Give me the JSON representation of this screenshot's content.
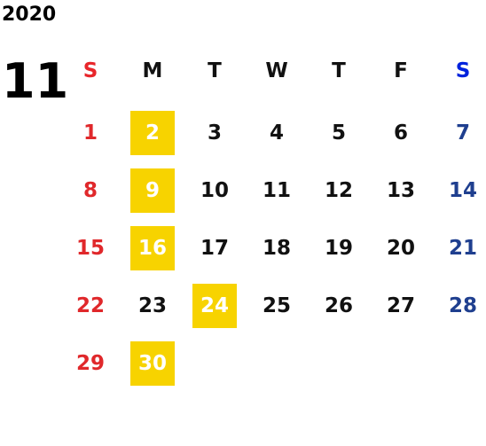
{
  "year": "2020",
  "month": "11",
  "weekdays": [
    "S",
    "M",
    "T",
    "W",
    "T",
    "F",
    "S"
  ],
  "weeks": [
    [
      {
        "day": "1"
      },
      {
        "day": "2",
        "highlight": true
      },
      {
        "day": "3"
      },
      {
        "day": "4"
      },
      {
        "day": "5"
      },
      {
        "day": "6"
      },
      {
        "day": "7"
      }
    ],
    [
      {
        "day": "8"
      },
      {
        "day": "9",
        "highlight": true
      },
      {
        "day": "10"
      },
      {
        "day": "11"
      },
      {
        "day": "12"
      },
      {
        "day": "13"
      },
      {
        "day": "14"
      }
    ],
    [
      {
        "day": "15"
      },
      {
        "day": "16",
        "highlight": true
      },
      {
        "day": "17"
      },
      {
        "day": "18"
      },
      {
        "day": "19"
      },
      {
        "day": "20"
      },
      {
        "day": "21"
      }
    ],
    [
      {
        "day": "22"
      },
      {
        "day": "23"
      },
      {
        "day": "24",
        "highlight": true
      },
      {
        "day": "25"
      },
      {
        "day": "26"
      },
      {
        "day": "27"
      },
      {
        "day": "28"
      }
    ],
    [
      {
        "day": "29"
      },
      {
        "day": "30",
        "highlight": true
      }
    ]
  ]
}
